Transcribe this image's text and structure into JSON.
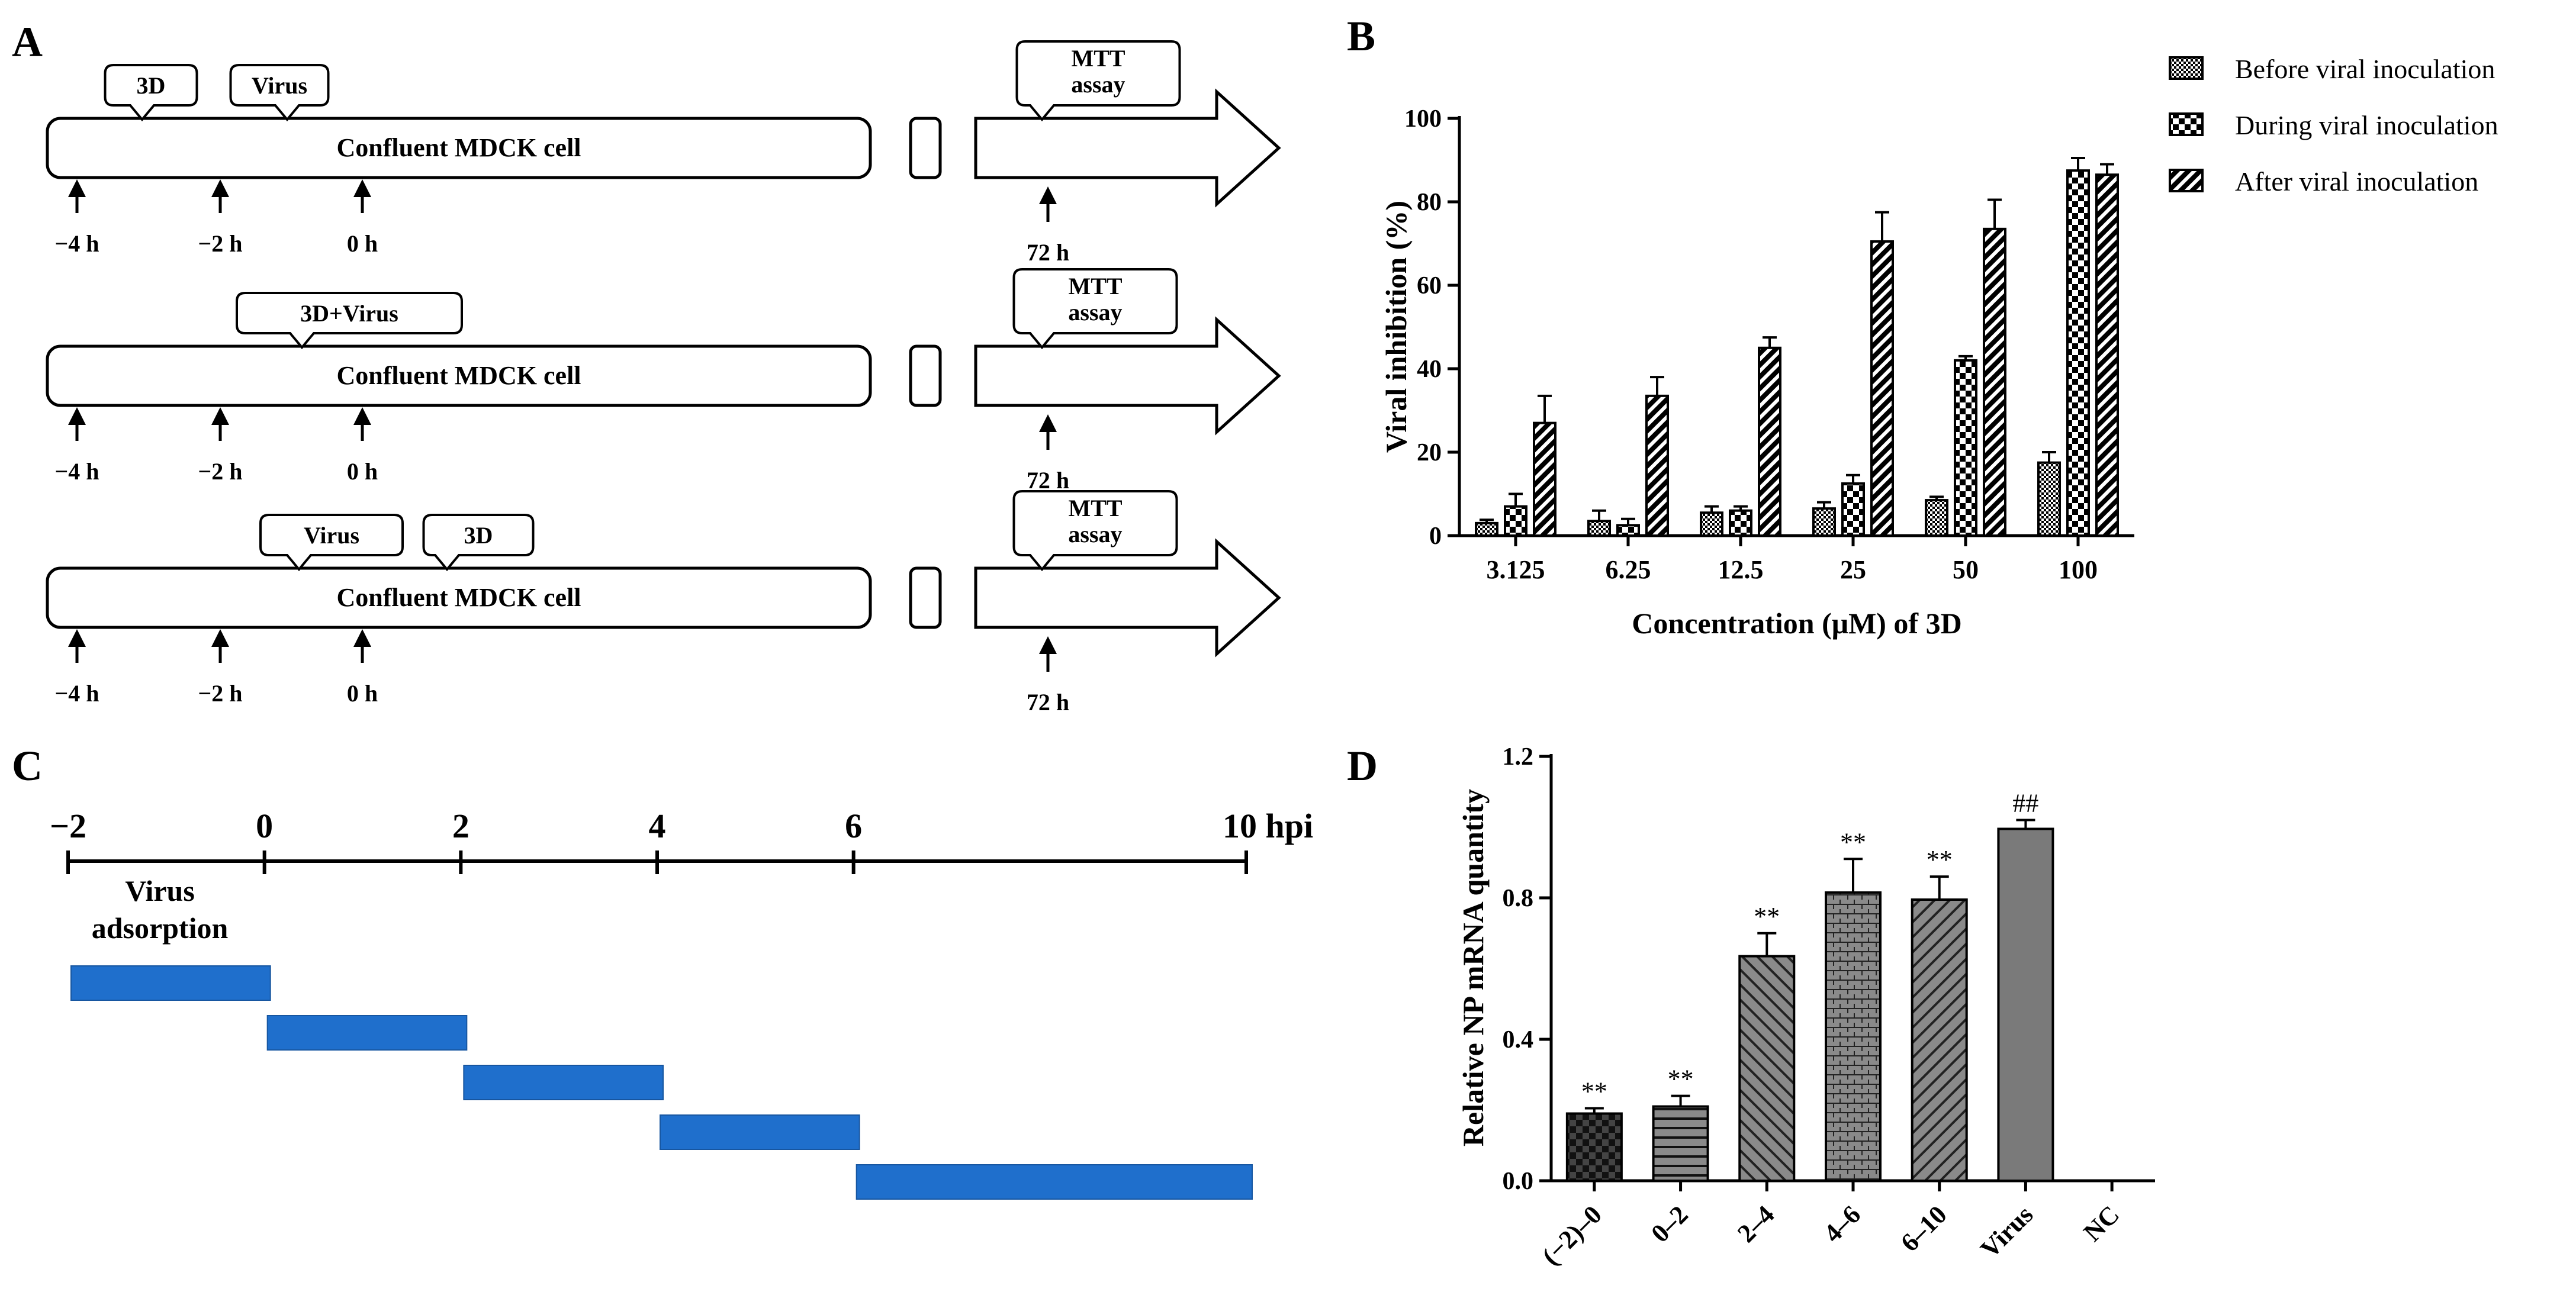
{
  "colors": {
    "ink": "#000000",
    "blue_bar": "#1f6fcc",
    "gray_bar": "#7a7a7a"
  },
  "panelA": {
    "label": "A",
    "rows": [
      {
        "callouts": [
          "3D",
          "Virus"
        ],
        "box_label": "Confluent MDCK cell",
        "assay_label": [
          "MTT",
          "assay"
        ],
        "times": [
          "−4 h",
          "−2 h",
          "0 h"
        ],
        "end_time": "72 h"
      },
      {
        "callouts": [
          "3D+Virus"
        ],
        "box_label": "Confluent MDCK cell",
        "assay_label": [
          "MTT",
          "assay"
        ],
        "times": [
          "−4 h",
          "−2 h",
          "0 h"
        ],
        "end_time": "72 h"
      },
      {
        "callouts": [
          "Virus",
          "3D"
        ],
        "box_label": "Confluent MDCK cell",
        "assay_label": [
          "MTT",
          "assay"
        ],
        "times": [
          "−4 h",
          "−2 h",
          "0 h"
        ],
        "end_time": "72 h"
      }
    ]
  },
  "panelB": {
    "label": "B",
    "chart_data": {
      "type": "bar",
      "categories": [
        "3.125",
        "6.25",
        "12.5",
        "25",
        "50",
        "100"
      ],
      "series": [
        {
          "name": "Before viral inoculation",
          "values": [
            3,
            3.5,
            5.5,
            6.5,
            8.5,
            17.5
          ],
          "errors": [
            0.8,
            2.5,
            1.5,
            1.5,
            0.8,
            2.5
          ]
        },
        {
          "name": "During viral inoculation",
          "values": [
            7,
            2.5,
            6,
            12.5,
            42,
            87.5
          ],
          "errors": [
            3,
            1.5,
            1,
            2,
            1,
            3
          ]
        },
        {
          "name": "After viral inoculation",
          "values": [
            27,
            33.5,
            45,
            70.5,
            73.5,
            86.5
          ],
          "errors": [
            6.5,
            4.5,
            2.5,
            7,
            7,
            2.5
          ]
        }
      ],
      "xlabel": "Concentration (μM) of 3D",
      "ylabel": "Viral inhibition (%)",
      "ylim": [
        0,
        100
      ],
      "yticks": [
        "0",
        "20",
        "40",
        "60",
        "80",
        "100"
      ],
      "legend": "top-right",
      "grid": false
    }
  },
  "panelC": {
    "label": "C",
    "ticks": [
      "−2",
      "0",
      "2",
      "4",
      "6",
      "10 hpi"
    ],
    "tick_values": [
      -2,
      0,
      2,
      4,
      6,
      10
    ],
    "adsorption_label": [
      "Virus",
      "adsorption"
    ],
    "intervals": [
      [
        -2,
        0
      ],
      [
        0,
        2
      ],
      [
        2,
        4
      ],
      [
        4,
        6
      ],
      [
        6,
        10
      ]
    ]
  },
  "panelD": {
    "label": "D",
    "chart_data": {
      "type": "bar",
      "categories": [
        "(−2)–0",
        "0–2",
        "2–4",
        "4–6",
        "6–10",
        "Virus",
        "NC"
      ],
      "values": [
        0.19,
        0.21,
        0.635,
        0.815,
        0.795,
        0.995,
        0
      ],
      "errors": [
        0.015,
        0.03,
        0.065,
        0.095,
        0.065,
        0.025,
        0
      ],
      "significance": [
        "**",
        "**",
        "**",
        "**",
        "**",
        "##",
        ""
      ],
      "ylabel": "Relative NP mRNA quantity",
      "ylim": [
        0,
        1.2
      ],
      "yticks": [
        "0.0",
        "0.4",
        "0.8",
        "1.2"
      ],
      "grid": false
    }
  }
}
